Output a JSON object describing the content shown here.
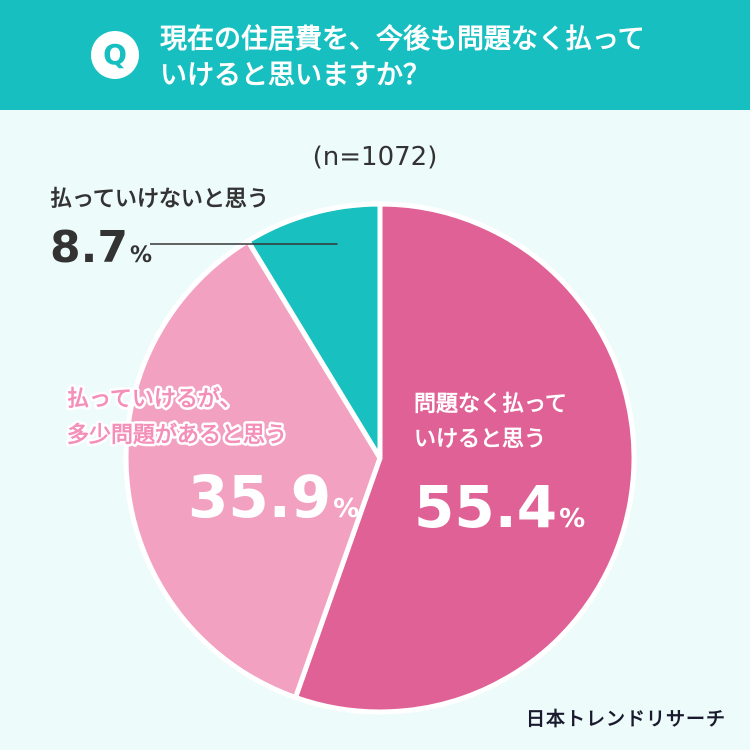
{
  "question": {
    "badge": "Q",
    "line1": "現在の住居費を、今後も問題なく払って",
    "line2": "いけると思いますか？"
  },
  "sample_size": "(n=1072)",
  "brand": "日本トレンドリサーチ",
  "chart_data": {
    "type": "pie",
    "title": "現在の住居費を、今後も問題なく払っていけると思いますか？",
    "n": 1072,
    "slices": [
      {
        "label": [
          "問題なく払って",
          "いけると思う"
        ],
        "value": 55.4,
        "value_label": "55.4",
        "unit": "%",
        "color": "#e06196"
      },
      {
        "label": [
          "払っていけるが、",
          "多少問題があると思う"
        ],
        "value": 35.9,
        "value_label": "35.9",
        "unit": "%",
        "color": "#f2a1c1"
      },
      {
        "label": [
          "払っていけないと思う"
        ],
        "value": 8.7,
        "value_label": "8.7",
        "unit": "%",
        "color": "#19c0c0"
      }
    ]
  }
}
